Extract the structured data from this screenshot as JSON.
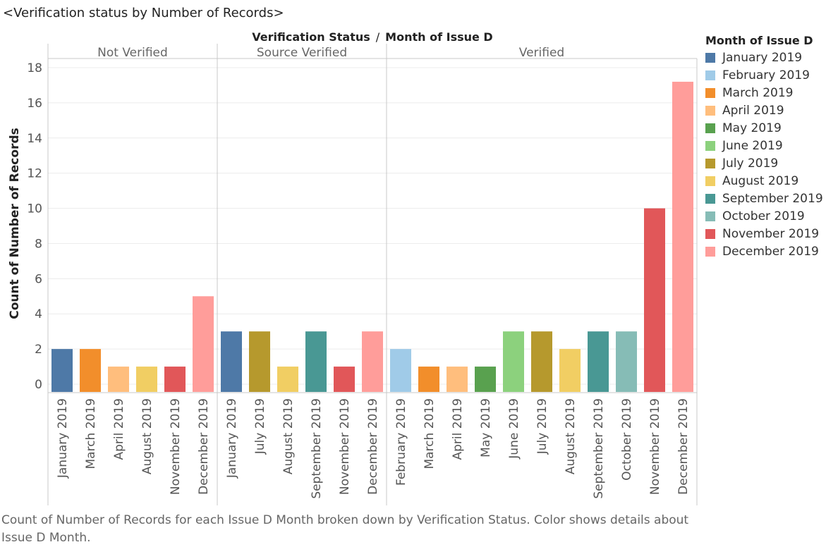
{
  "chart_data": {
    "type": "bar",
    "title": "<Verification status by Number of Records>",
    "column_header": "Verification Status",
    "column_header_sep": "/",
    "column_header_2": "Month of Issue D",
    "ylabel": "Count of Number of Records",
    "ylim": [
      0,
      18
    ],
    "yticks": [
      0,
      2,
      4,
      6,
      8,
      10,
      12,
      14,
      16,
      18
    ],
    "grid": true,
    "legend_position": "right",
    "panels": [
      {
        "name": "Not Verified",
        "bars": [
          {
            "month": "January 2019",
            "value": 2
          },
          {
            "month": "March 2019",
            "value": 2
          },
          {
            "month": "April 2019",
            "value": 1
          },
          {
            "month": "August 2019",
            "value": 1
          },
          {
            "month": "November 2019",
            "value": 1
          },
          {
            "month": "December 2019",
            "value": 5
          }
        ]
      },
      {
        "name": "Source Verified",
        "bars": [
          {
            "month": "January 2019",
            "value": 3
          },
          {
            "month": "July 2019",
            "value": 3
          },
          {
            "month": "August 2019",
            "value": 1
          },
          {
            "month": "September 2019",
            "value": 3
          },
          {
            "month": "November 2019",
            "value": 1
          },
          {
            "month": "December 2019",
            "value": 3
          }
        ]
      },
      {
        "name": "Verified",
        "bars": [
          {
            "month": "February 2019",
            "value": 2
          },
          {
            "month": "March 2019",
            "value": 1
          },
          {
            "month": "April 2019",
            "value": 1
          },
          {
            "month": "May 2019",
            "value": 1
          },
          {
            "month": "June 2019",
            "value": 3
          },
          {
            "month": "July 2019",
            "value": 3
          },
          {
            "month": "August 2019",
            "value": 2
          },
          {
            "month": "September 2019",
            "value": 3
          },
          {
            "month": "October 2019",
            "value": 3
          },
          {
            "month": "November 2019",
            "value": 10
          },
          {
            "month": "December 2019",
            "value": 17.2
          }
        ]
      }
    ],
    "legend": {
      "title": "Month of Issue D",
      "items": [
        {
          "label": "January 2019",
          "color": "#4e79a7"
        },
        {
          "label": "February 2019",
          "color": "#a0cbe8"
        },
        {
          "label": "March 2019",
          "color": "#f28e2b"
        },
        {
          "label": "April 2019",
          "color": "#ffbe7d"
        },
        {
          "label": "May 2019",
          "color": "#59a14f"
        },
        {
          "label": "June 2019",
          "color": "#8cd17d"
        },
        {
          "label": "July 2019",
          "color": "#b6992d"
        },
        {
          "label": "August 2019",
          "color": "#f1ce63"
        },
        {
          "label": "September 2019",
          "color": "#499894"
        },
        {
          "label": "October 2019",
          "color": "#86bcb6"
        },
        {
          "label": "November 2019",
          "color": "#e15759"
        },
        {
          "label": "December 2019",
          "color": "#ff9d9a"
        }
      ]
    },
    "caption": "Count of Number of Records for each Issue D Month broken down by Verification Status.  Color shows details about Issue D Month."
  }
}
